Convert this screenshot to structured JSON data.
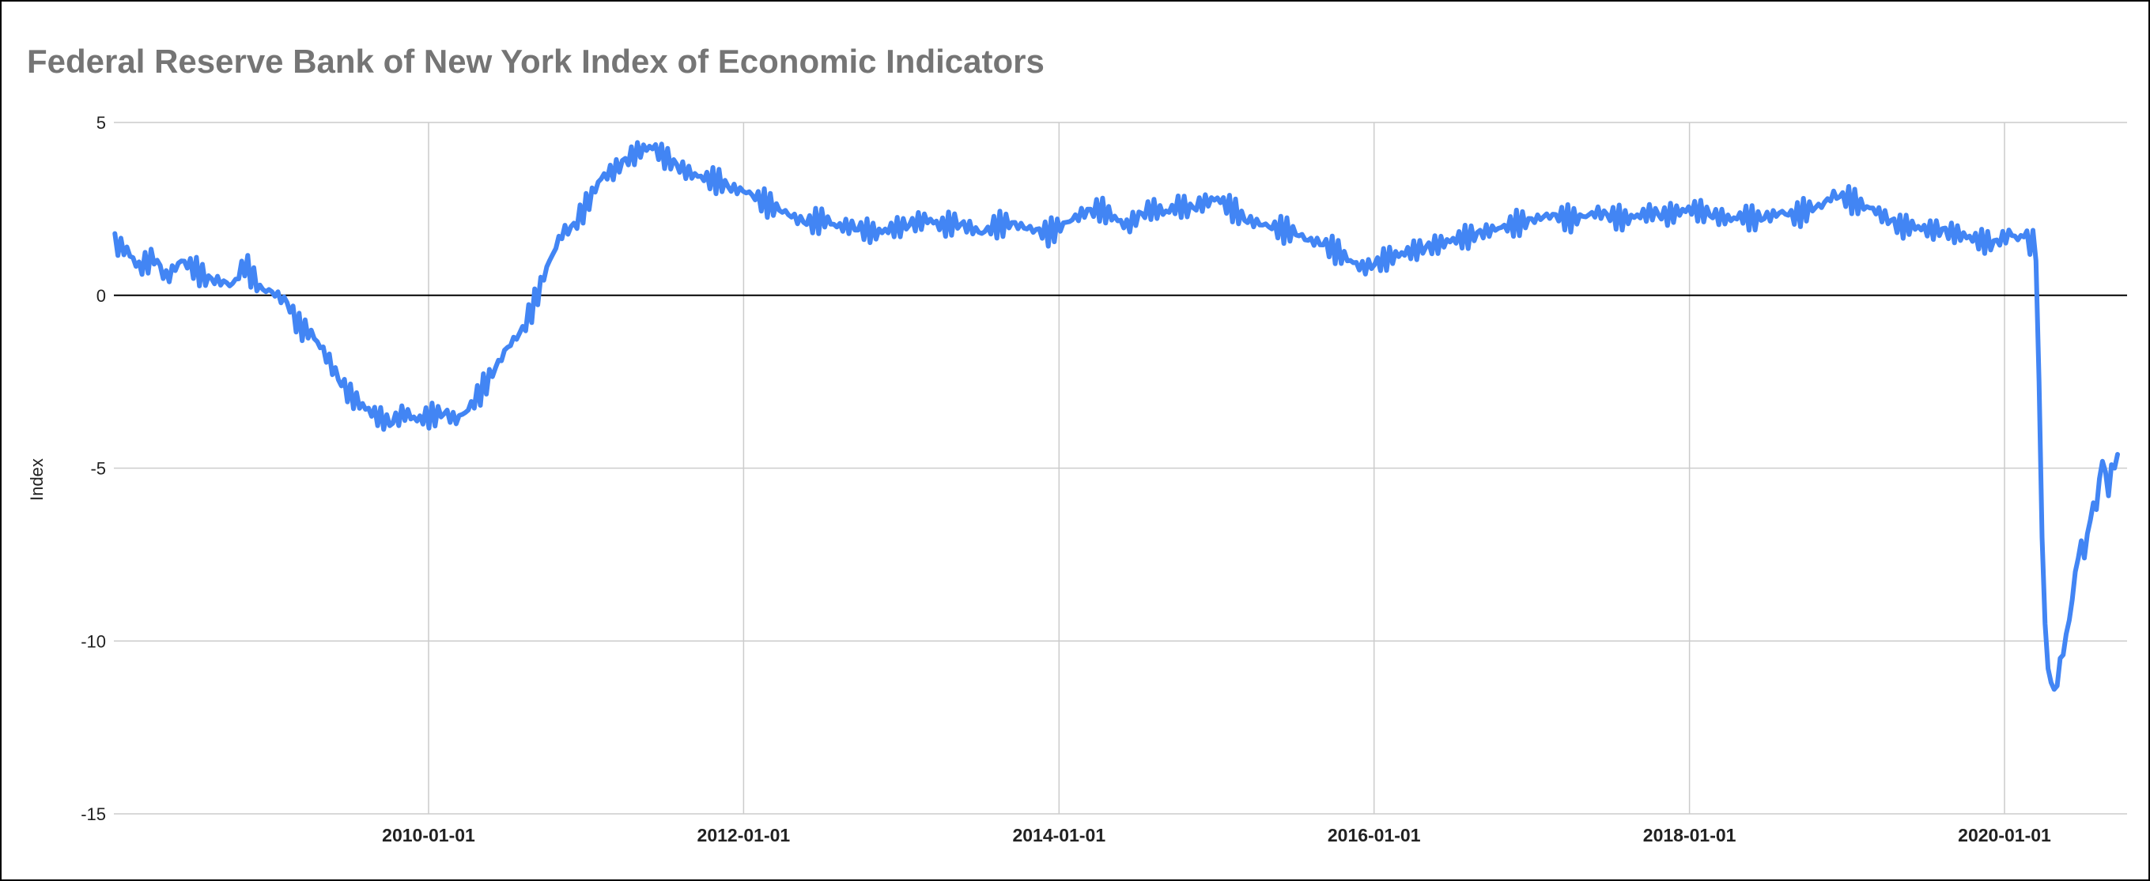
{
  "chart_data": {
    "type": "line",
    "title": "Federal Reserve Bank of New York Index of Economic Indicators",
    "xlabel": "",
    "ylabel": "Index",
    "ylim": [
      -15,
      5
    ],
    "xlim": [
      "2008-01-05",
      "2020-10-03"
    ],
    "y_ticks": [
      "5",
      "0",
      "-5",
      "-10",
      "-15"
    ],
    "x_ticks": [
      "2010-01-01",
      "2012-01-01",
      "2014-01-01",
      "2016-01-01",
      "2018-01-01",
      "2020-01-01"
    ],
    "grid": true,
    "legend": "none",
    "colors": {
      "line": "#4285f4",
      "zero_line": "#000000",
      "grid": "#cccccc"
    },
    "series": [
      {
        "points": [
          [
            "2008-01-05",
            1.5
          ],
          [
            "2008-02-02",
            1.3
          ],
          [
            "2008-03-01",
            0.8
          ],
          [
            "2008-04-05",
            1.1
          ],
          [
            "2008-05-03",
            0.5
          ],
          [
            "2008-06-07",
            1.0
          ],
          [
            "2008-07-05",
            0.8
          ],
          [
            "2008-08-02",
            0.5
          ],
          [
            "2008-09-06",
            0.4
          ],
          [
            "2008-10-04",
            0.3
          ],
          [
            "2008-11-01",
            0.9
          ],
          [
            "2008-12-06",
            0.2
          ],
          [
            "2009-01-03",
            0.1
          ],
          [
            "2009-02-07",
            -0.2
          ],
          [
            "2009-03-07",
            -0.9
          ],
          [
            "2009-04-04",
            -1.1
          ],
          [
            "2009-05-02",
            -1.6
          ],
          [
            "2009-06-06",
            -2.4
          ],
          [
            "2009-07-04",
            -2.9
          ],
          [
            "2009-08-01",
            -3.2
          ],
          [
            "2009-09-05",
            -3.5
          ],
          [
            "2009-10-03",
            -3.7
          ],
          [
            "2009-11-07",
            -3.4
          ],
          [
            "2009-12-05",
            -3.6
          ],
          [
            "2010-01-02",
            -3.5
          ],
          [
            "2010-02-06",
            -3.4
          ],
          [
            "2010-03-06",
            -3.6
          ],
          [
            "2010-04-03",
            -3.3
          ],
          [
            "2010-05-01",
            -2.8
          ],
          [
            "2010-06-05",
            -2.1
          ],
          [
            "2010-07-03",
            -1.5
          ],
          [
            "2010-08-07",
            -1.0
          ],
          [
            "2010-09-04",
            -0.2
          ],
          [
            "2010-10-02",
            0.8
          ],
          [
            "2010-11-06",
            1.8
          ],
          [
            "2010-12-04",
            2.0
          ],
          [
            "2011-01-01",
            2.6
          ],
          [
            "2011-02-05",
            3.4
          ],
          [
            "2011-03-05",
            3.6
          ],
          [
            "2011-04-02",
            3.9
          ],
          [
            "2011-05-07",
            4.2
          ],
          [
            "2011-06-04",
            4.3
          ],
          [
            "2011-07-02",
            4.0
          ],
          [
            "2011-08-06",
            3.7
          ],
          [
            "2011-09-03",
            3.5
          ],
          [
            "2011-10-01",
            3.4
          ],
          [
            "2011-11-05",
            3.3
          ],
          [
            "2011-12-03",
            3.1
          ],
          [
            "2012-01-07",
            3.0
          ],
          [
            "2012-02-04",
            2.8
          ],
          [
            "2012-03-03",
            2.6
          ],
          [
            "2012-04-07",
            2.4
          ],
          [
            "2012-05-05",
            2.2
          ],
          [
            "2012-06-02",
            2.1
          ],
          [
            "2012-07-07",
            2.2
          ],
          [
            "2012-08-04",
            2.0
          ],
          [
            "2012-09-01",
            2.0
          ],
          [
            "2012-10-06",
            1.9
          ],
          [
            "2012-11-03",
            1.8
          ],
          [
            "2012-12-01",
            1.9
          ],
          [
            "2013-01-05",
            2.0
          ],
          [
            "2013-02-02",
            2.1
          ],
          [
            "2013-03-02",
            2.2
          ],
          [
            "2013-04-06",
            2.0
          ],
          [
            "2013-05-04",
            2.1
          ],
          [
            "2013-06-01",
            2.0
          ],
          [
            "2013-07-06",
            1.8
          ],
          [
            "2013-08-03",
            2.0
          ],
          [
            "2013-09-07",
            2.1
          ],
          [
            "2013-10-05",
            2.0
          ],
          [
            "2013-11-02",
            1.9
          ],
          [
            "2013-12-07",
            1.8
          ],
          [
            "2014-01-04",
            2.0
          ],
          [
            "2014-02-01",
            2.2
          ],
          [
            "2014-03-01",
            2.4
          ],
          [
            "2014-04-05",
            2.5
          ],
          [
            "2014-05-03",
            2.3
          ],
          [
            "2014-06-07",
            2.0
          ],
          [
            "2014-07-05",
            2.3
          ],
          [
            "2014-08-02",
            2.5
          ],
          [
            "2014-09-06",
            2.4
          ],
          [
            "2014-10-04",
            2.6
          ],
          [
            "2014-11-01",
            2.5
          ],
          [
            "2014-12-06",
            2.7
          ],
          [
            "2015-01-03",
            2.8
          ],
          [
            "2015-02-07",
            2.5
          ],
          [
            "2015-03-07",
            2.2
          ],
          [
            "2015-04-04",
            2.1
          ],
          [
            "2015-05-02",
            2.0
          ],
          [
            "2015-06-06",
            1.9
          ],
          [
            "2015-07-04",
            1.8
          ],
          [
            "2015-08-01",
            1.6
          ],
          [
            "2015-09-05",
            1.5
          ],
          [
            "2015-10-03",
            1.3
          ],
          [
            "2015-11-07",
            1.0
          ],
          [
            "2015-12-05",
            0.8
          ],
          [
            "2016-01-02",
            0.9
          ],
          [
            "2016-02-06",
            1.1
          ],
          [
            "2016-03-05",
            1.2
          ],
          [
            "2016-04-02",
            1.3
          ],
          [
            "2016-05-07",
            1.4
          ],
          [
            "2016-06-04",
            1.5
          ],
          [
            "2016-07-02",
            1.6
          ],
          [
            "2016-08-06",
            1.7
          ],
          [
            "2016-09-03",
            1.8
          ],
          [
            "2016-10-01",
            1.9
          ],
          [
            "2016-11-05",
            2.0
          ],
          [
            "2016-12-03",
            2.1
          ],
          [
            "2017-01-07",
            2.2
          ],
          [
            "2017-02-04",
            2.3
          ],
          [
            "2017-03-04",
            2.3
          ],
          [
            "2017-04-01",
            2.2
          ],
          [
            "2017-05-06",
            2.3
          ],
          [
            "2017-06-03",
            2.4
          ],
          [
            "2017-07-01",
            2.3
          ],
          [
            "2017-08-05",
            2.2
          ],
          [
            "2017-09-02",
            2.3
          ],
          [
            "2017-10-07",
            2.4
          ],
          [
            "2017-11-04",
            2.3
          ],
          [
            "2017-12-02",
            2.4
          ],
          [
            "2018-01-06",
            2.5
          ],
          [
            "2018-02-03",
            2.4
          ],
          [
            "2018-03-03",
            2.3
          ],
          [
            "2018-04-07",
            2.2
          ],
          [
            "2018-05-05",
            2.3
          ],
          [
            "2018-06-02",
            2.2
          ],
          [
            "2018-07-07",
            2.3
          ],
          [
            "2018-08-04",
            2.4
          ],
          [
            "2018-09-01",
            2.3
          ],
          [
            "2018-10-06",
            2.5
          ],
          [
            "2018-11-03",
            2.6
          ],
          [
            "2018-12-01",
            2.9
          ],
          [
            "2019-01-05",
            2.8
          ],
          [
            "2019-02-02",
            2.6
          ],
          [
            "2019-03-02",
            2.5
          ],
          [
            "2019-04-06",
            2.2
          ],
          [
            "2019-05-04",
            2.0
          ],
          [
            "2019-06-01",
            2.0
          ],
          [
            "2019-07-06",
            1.9
          ],
          [
            "2019-08-03",
            1.9
          ],
          [
            "2019-09-07",
            1.8
          ],
          [
            "2019-10-05",
            1.7
          ],
          [
            "2019-11-02",
            1.6
          ],
          [
            "2019-12-07",
            1.5
          ],
          [
            "2020-01-04",
            1.7
          ],
          [
            "2020-01-18",
            1.8
          ],
          [
            "2020-02-01",
            1.6
          ],
          [
            "2020-02-15",
            1.8
          ],
          [
            "2020-02-29",
            1.5
          ],
          [
            "2020-03-07",
            1.5
          ],
          [
            "2020-03-14",
            1.0
          ],
          [
            "2020-03-21",
            -2.5
          ],
          [
            "2020-03-28",
            -7.0
          ],
          [
            "2020-04-04",
            -9.5
          ],
          [
            "2020-04-11",
            -10.8
          ],
          [
            "2020-04-18",
            -11.2
          ],
          [
            "2020-04-25",
            -11.4
          ],
          [
            "2020-05-02",
            -11.3
          ],
          [
            "2020-05-09",
            -10.5
          ],
          [
            "2020-05-16",
            -10.4
          ],
          [
            "2020-05-23",
            -9.8
          ],
          [
            "2020-05-30",
            -9.4
          ],
          [
            "2020-06-06",
            -8.8
          ],
          [
            "2020-06-13",
            -8.0
          ],
          [
            "2020-06-20",
            -7.6
          ],
          [
            "2020-06-27",
            -7.1
          ],
          [
            "2020-07-04",
            -7.6
          ],
          [
            "2020-07-11",
            -6.9
          ],
          [
            "2020-07-18",
            -6.5
          ],
          [
            "2020-07-25",
            -6.0
          ],
          [
            "2020-08-01",
            -6.2
          ],
          [
            "2020-08-08",
            -5.3
          ],
          [
            "2020-08-15",
            -4.8
          ],
          [
            "2020-08-22",
            -5.1
          ],
          [
            "2020-08-29",
            -5.8
          ],
          [
            "2020-09-05",
            -4.9
          ],
          [
            "2020-09-12",
            -5.0
          ],
          [
            "2020-09-19",
            -4.6
          ]
        ]
      }
    ]
  }
}
